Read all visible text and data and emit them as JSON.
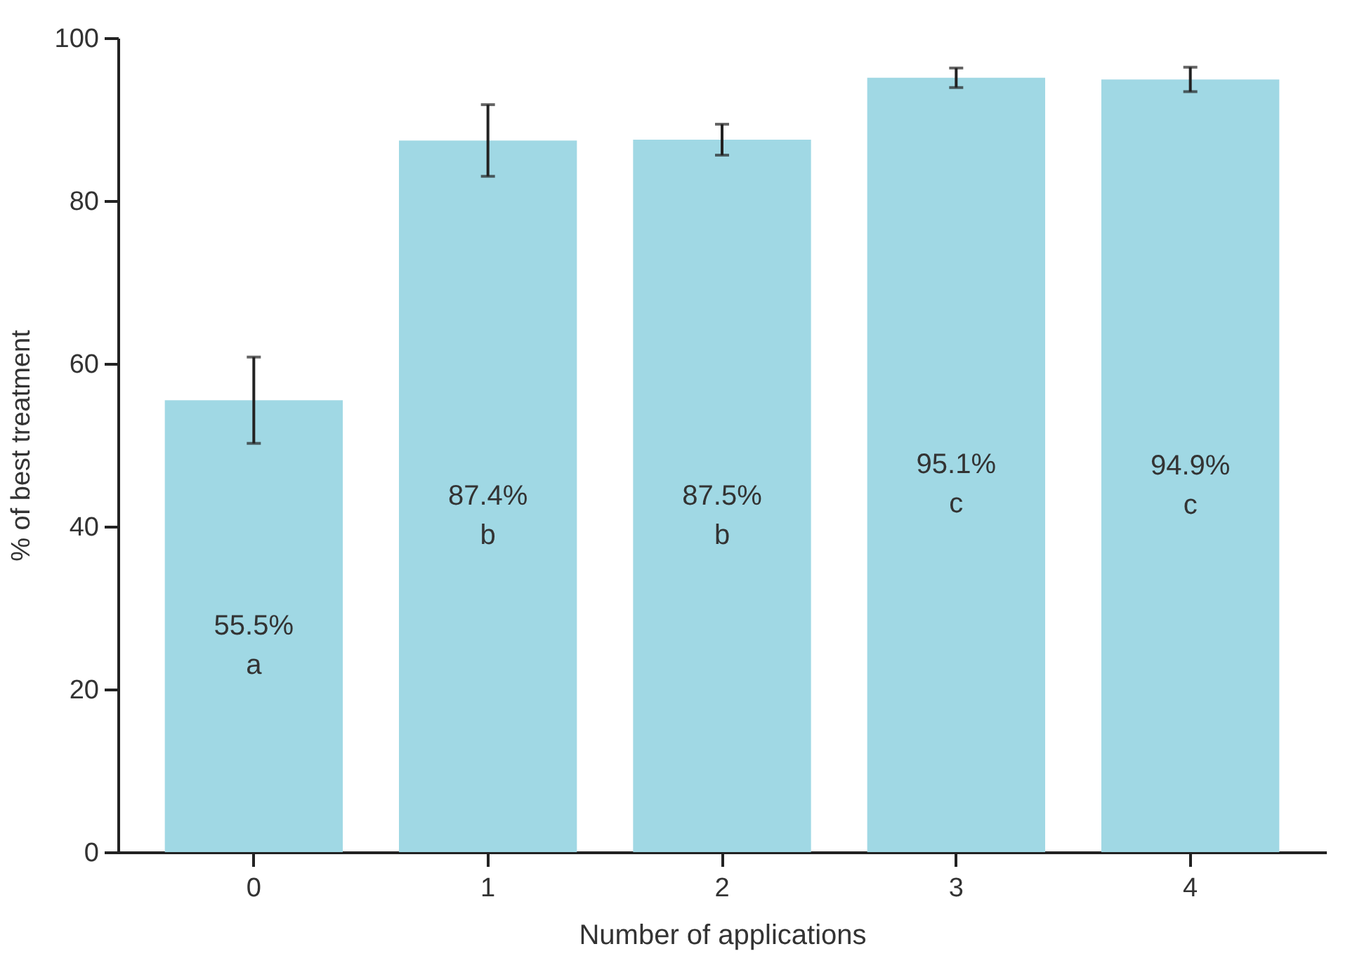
{
  "chart_data": {
    "type": "bar",
    "xlabel": "Number of applications",
    "ylabel": "% of best treatment",
    "categories": [
      "0",
      "1",
      "2",
      "3",
      "4"
    ],
    "values": [
      55.5,
      87.4,
      87.5,
      95.1,
      94.9
    ],
    "errors": [
      5.3,
      4.4,
      1.9,
      1.2,
      1.5
    ],
    "value_labels": [
      "55.5%\na",
      "87.4%\nb",
      "87.5%\nb",
      "95.1%\nc",
      "94.9%\nc"
    ],
    "color": "#a0d8e4",
    "ylim": [
      0,
      100
    ],
    "yticks": [
      0,
      20,
      40,
      60,
      80,
      100
    ],
    "grid": false
  }
}
